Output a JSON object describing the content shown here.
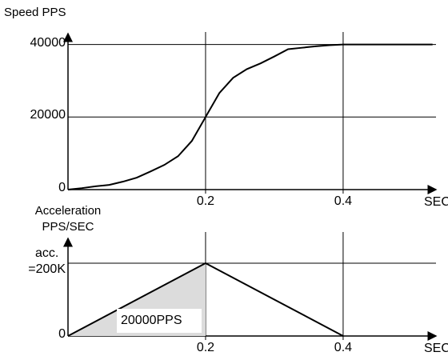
{
  "chart_data": [
    {
      "type": "line",
      "y_label": "Speed PPS",
      "x_label": "SEC",
      "x": [
        0,
        0.02,
        0.04,
        0.06,
        0.08,
        0.1,
        0.12,
        0.14,
        0.16,
        0.18,
        0.2,
        0.22,
        0.24,
        0.26,
        0.28,
        0.3,
        0.32,
        0.34,
        0.36,
        0.38,
        0.4,
        0.53
      ],
      "series": [
        {
          "color": "#000000",
          "values": [
            0,
            400,
            900,
            1300,
            2200,
            3300,
            5000,
            6800,
            9200,
            13400,
            20000,
            26600,
            30800,
            33200,
            34800,
            36700,
            38700,
            39100,
            39500,
            39800,
            40000,
            40000
          ]
        }
      ],
      "xlim": [
        0,
        0.535
      ],
      "ylim": [
        0,
        43000
      ],
      "xticks": [
        0.2,
        0.4
      ],
      "yticks": [
        0,
        20000,
        40000
      ],
      "grid": true
    },
    {
      "type": "line",
      "y_label": "Acceleration\nPPS/SEC",
      "x_label": "SEC",
      "x": [
        0,
        0.2,
        0.4
      ],
      "series": [
        {
          "color": "#000000",
          "values": [
            0,
            200000,
            0
          ],
          "fill_to": 1,
          "fill_color": "#dcdcdc"
        }
      ],
      "annotation": "20000PPS",
      "xlim": [
        0,
        0.535
      ],
      "ylim": [
        0,
        268000
      ],
      "xticks": [
        0.2,
        0.4
      ],
      "yticks": [
        0,
        {
          "value": 200000,
          "label": "acc.\n=200K"
        }
      ],
      "grid": true
    }
  ]
}
